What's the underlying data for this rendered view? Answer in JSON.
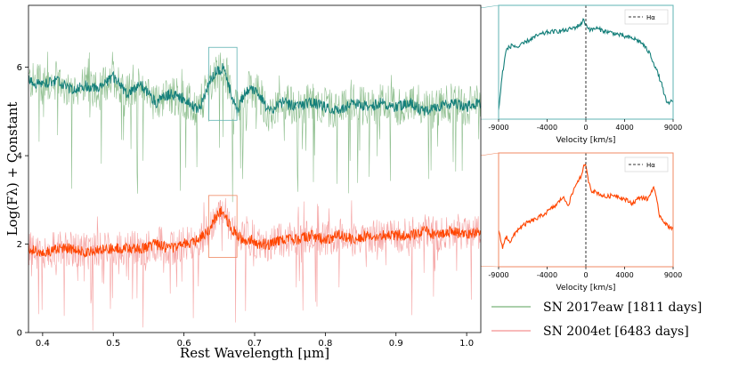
{
  "chart_data": [
    {
      "type": "line",
      "panel": "main",
      "xlabel": "Rest Wavelength [μm]",
      "ylabel": "Log(Fλ) + Constant",
      "xlim": [
        0.38,
        1.02
      ],
      "ylim": [
        0,
        7.4
      ],
      "xticks": [
        "0.4",
        "0.5",
        "0.6",
        "0.7",
        "0.8",
        "0.9",
        "1.0"
      ],
      "xtick_values": [
        0.4,
        0.5,
        0.6,
        0.7,
        0.8,
        0.9,
        1.0
      ],
      "yticks": [
        "0",
        "2",
        "4",
        "6"
      ],
      "ytick_values": [
        0,
        2,
        4,
        6
      ],
      "grid": false,
      "legend_position": "below-right, outside axes",
      "series": [
        {
          "name": "SN 2017eaw [1811 days]",
          "raw_color": "#8fbf8f",
          "smooth_color": "#147f7a",
          "x": [
            0.38,
            0.4,
            0.42,
            0.44,
            0.46,
            0.48,
            0.5,
            0.52,
            0.54,
            0.56,
            0.58,
            0.6,
            0.62,
            0.635,
            0.645,
            0.655,
            0.665,
            0.675,
            0.685,
            0.695,
            0.705,
            0.72,
            0.74,
            0.76,
            0.78,
            0.8,
            0.82,
            0.84,
            0.86,
            0.88,
            0.9,
            0.92,
            0.94,
            0.96,
            0.98,
            1.0,
            1.02
          ],
          "y": [
            5.7,
            5.6,
            5.7,
            5.5,
            5.6,
            5.5,
            5.8,
            5.4,
            5.6,
            5.2,
            5.4,
            5.3,
            5.0,
            5.6,
            5.9,
            6.0,
            5.5,
            5.0,
            5.4,
            5.5,
            5.4,
            5.0,
            5.2,
            5.1,
            5.2,
            5.1,
            5.0,
            5.2,
            5.1,
            5.2,
            5.1,
            5.2,
            5.0,
            5.1,
            5.2,
            5.1,
            5.2
          ]
        },
        {
          "name": "SN 2004et [6483 days]",
          "raw_color": "#f5a3a3",
          "smooth_color": "#ff4500",
          "x": [
            0.38,
            0.4,
            0.42,
            0.44,
            0.46,
            0.48,
            0.5,
            0.52,
            0.54,
            0.56,
            0.58,
            0.6,
            0.62,
            0.635,
            0.645,
            0.655,
            0.665,
            0.675,
            0.685,
            0.695,
            0.705,
            0.72,
            0.74,
            0.76,
            0.78,
            0.8,
            0.82,
            0.84,
            0.86,
            0.88,
            0.9,
            0.92,
            0.94,
            0.96,
            0.98,
            1.0,
            1.02
          ],
          "y": [
            1.9,
            1.8,
            1.9,
            1.9,
            1.8,
            1.9,
            1.9,
            1.9,
            1.9,
            2.0,
            1.9,
            2.0,
            2.1,
            2.3,
            2.6,
            2.8,
            2.4,
            2.2,
            2.1,
            2.1,
            2.0,
            2.0,
            2.1,
            2.1,
            2.2,
            2.1,
            2.2,
            2.1,
            2.2,
            2.2,
            2.2,
            2.2,
            2.3,
            2.2,
            2.3,
            2.2,
            2.3
          ]
        }
      ],
      "zoom_boxes": [
        {
          "series": "SN 2017eaw [1811 days]",
          "x": [
            0.635,
            0.675
          ],
          "y": [
            4.8,
            6.45
          ]
        },
        {
          "series": "SN 2004et [6483 days]",
          "x": [
            0.635,
            0.675
          ],
          "y": [
            1.7,
            3.1
          ]
        }
      ]
    },
    {
      "type": "line",
      "panel": "inset-top",
      "xlabel": "Velocity [km/s]",
      "xlim": [
        -9000,
        9000
      ],
      "xticks": [
        "-9000",
        "-4000",
        "0",
        "4000",
        "9000"
      ],
      "xtick_values": [
        -9000,
        -4000,
        0,
        4000,
        9000
      ],
      "color": "#147f7a",
      "frame_color": "#5fb3b3",
      "legend": "Hα",
      "legend_position": "top-right",
      "marker_line": {
        "x": 0,
        "style": "dashed"
      },
      "x": [
        -9000,
        -8600,
        -8200,
        -7600,
        -7000,
        -6000,
        -5000,
        -4000,
        -3000,
        -2000,
        -1000,
        -500,
        -200,
        0,
        200,
        500,
        1000,
        2000,
        3000,
        4000,
        5000,
        5800,
        6600,
        7200,
        7800,
        8400,
        9000
      ],
      "y": [
        0.05,
        0.4,
        0.62,
        0.66,
        0.64,
        0.7,
        0.75,
        0.78,
        0.79,
        0.8,
        0.83,
        0.86,
        0.9,
        0.85,
        0.83,
        0.8,
        0.82,
        0.79,
        0.77,
        0.74,
        0.72,
        0.68,
        0.58,
        0.45,
        0.3,
        0.1,
        0.15
      ]
    },
    {
      "type": "line",
      "panel": "inset-bottom",
      "xlabel": "Velocity [km/s]",
      "xlim": [
        -9000,
        9000
      ],
      "xticks": [
        "-9000",
        "-4000",
        "0",
        "4000",
        "9000"
      ],
      "xtick_values": [
        -9000,
        -4000,
        0,
        4000,
        9000
      ],
      "color": "#ff4500",
      "frame_color": "#f08a63",
      "legend": "Hα",
      "legend_position": "top-right",
      "marker_line": {
        "x": 0,
        "style": "dashed"
      },
      "x": [
        -9000,
        -8600,
        -8200,
        -7800,
        -7000,
        -6000,
        -5000,
        -4000,
        -3000,
        -2400,
        -1800,
        -1200,
        -800,
        -400,
        -100,
        200,
        600,
        1200,
        2000,
        3000,
        4000,
        4800,
        5600,
        6400,
        7000,
        7600,
        8400,
        9000
      ],
      "y": [
        0.3,
        0.15,
        0.25,
        0.2,
        0.32,
        0.38,
        0.42,
        0.48,
        0.55,
        0.62,
        0.55,
        0.7,
        0.78,
        0.82,
        0.95,
        0.8,
        0.68,
        0.66,
        0.62,
        0.64,
        0.6,
        0.56,
        0.62,
        0.6,
        0.72,
        0.45,
        0.35,
        0.33
      ]
    }
  ]
}
